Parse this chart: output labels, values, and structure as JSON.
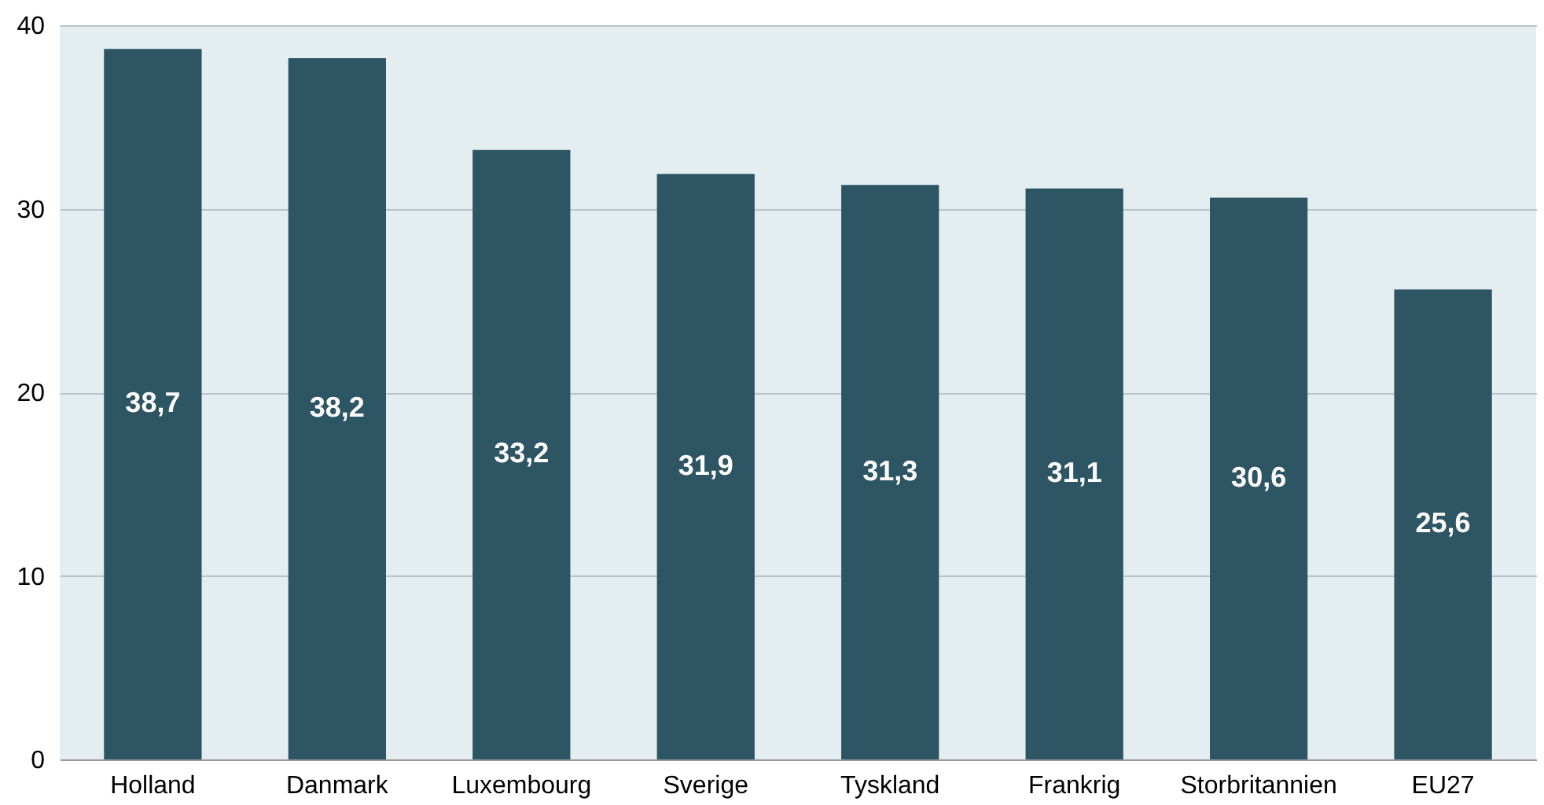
{
  "chart_data": {
    "type": "bar",
    "categories": [
      "Holland",
      "Danmark",
      "Luxembourg",
      "Sverige",
      "Tyskland",
      "Frankrig",
      "Storbritannien",
      "EU27"
    ],
    "values": [
      38.7,
      38.2,
      33.2,
      31.9,
      31.3,
      31.1,
      30.6,
      25.6
    ],
    "value_labels": [
      "38,7",
      "38,2",
      "33,2",
      "31,9",
      "31,3",
      "31,1",
      "30,6",
      "25,6"
    ],
    "color": "#2d5563",
    "ylim": [
      0,
      40
    ],
    "yticks": [
      0,
      10,
      20,
      30,
      40
    ],
    "grid": "y"
  }
}
